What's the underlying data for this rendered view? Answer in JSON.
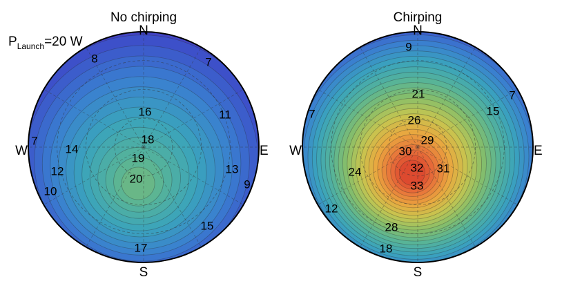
{
  "chart_data": [
    {
      "type": "polar_contour",
      "title": "No chirping",
      "directions": {
        "north": "N",
        "south": "S",
        "east": "E",
        "west": "W"
      },
      "annotation": {
        "main": "P",
        "sub": "Launch",
        "suffix": "=20 W"
      },
      "peak": {
        "value": 20.5,
        "offset_east": -0.05,
        "offset_north": -0.55
      },
      "edge_min": 7,
      "contour_labels": [
        "8",
        "7",
        "11",
        "16",
        "18",
        "7",
        "14",
        "19",
        "13",
        "12",
        "20",
        "9",
        "10",
        "15",
        "17"
      ]
    },
    {
      "type": "polar_contour",
      "title": "Chirping",
      "directions": {
        "north": "N",
        "south": "S",
        "east": "E",
        "west": "W"
      },
      "peak": {
        "value": 34,
        "offset_east": -0.05,
        "offset_north": -0.38
      },
      "edge_min": 6,
      "contour_labels": [
        "9",
        "7",
        "21",
        "15",
        "7",
        "26",
        "29",
        "30",
        "24",
        "32",
        "31",
        "33",
        "12",
        "28",
        "18"
      ]
    }
  ],
  "colors": {
    "low": "#5a1fa8",
    "ramp": [
      "#5a1fa8",
      "#3d4bc8",
      "#3a7fd0",
      "#3aa3bd",
      "#55b39a",
      "#86be6a",
      "#c7c550",
      "#e9a73f",
      "#e8703a",
      "#d83a2a"
    ],
    "outline": "#000000"
  }
}
